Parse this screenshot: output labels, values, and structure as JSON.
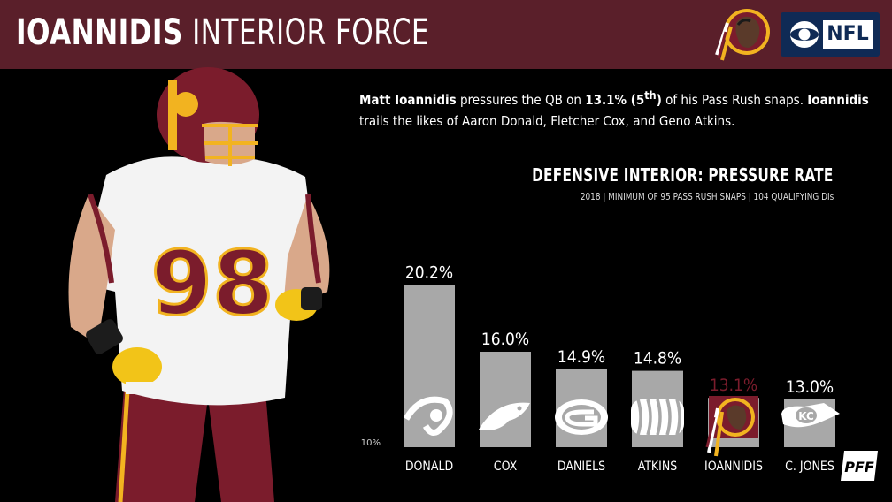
{
  "header": {
    "title_last": "IOANNIDIS",
    "title_sub": "INTERIOR FORCE",
    "brand": {
      "nfl": "NFL"
    },
    "colors": {
      "header_bg": "#5a1f2a",
      "burgundy": "#7b1c2c",
      "gold": "#f2b320",
      "bar": "#a8a8a8"
    }
  },
  "description": {
    "part1": "Matt Ioannidis",
    "part2": " pressures the QB on ",
    "stat": "13.1% (5",
    "stat_sup": "th",
    "stat_close": ")",
    "part3": " of his Pass Rush snaps. ",
    "part4": "Ioannidis",
    "line2": "trails the likes of Aaron Donald, Fletcher Cox, and Geno Atkins."
  },
  "chart_title": "DEFENSIVE INTERIOR: PRESSURE RATE",
  "chart_subtitle": "2018 | MINIMUM OF 95 PASS RUSH SNAPS | 104 QUALIFYING DIs",
  "chart_data": {
    "type": "bar",
    "categories": [
      "DONALD",
      "COX",
      "DANIELS",
      "ATKINS",
      "IOANNIDIS",
      "C. JONES"
    ],
    "values": [
      20.2,
      16.0,
      14.9,
      14.8,
      13.1,
      13.0
    ],
    "value_labels": [
      "20.2%",
      "16.0%",
      "14.9%",
      "14.8%",
      "13.1%",
      "13.0%"
    ],
    "team_icons": [
      "rams-logo-icon",
      "eagles-logo-icon",
      "packers-logo-icon",
      "bengals-logo-icon",
      "redskins-logo-icon",
      "chiefs-logo-icon"
    ],
    "highlight_index": 4,
    "highlight_color": "#7b1c2c",
    "ymin_label": "10%",
    "ylim": [
      10,
      21
    ],
    "grid": false
  },
  "footer": {
    "logo": "pff-logo-icon"
  }
}
